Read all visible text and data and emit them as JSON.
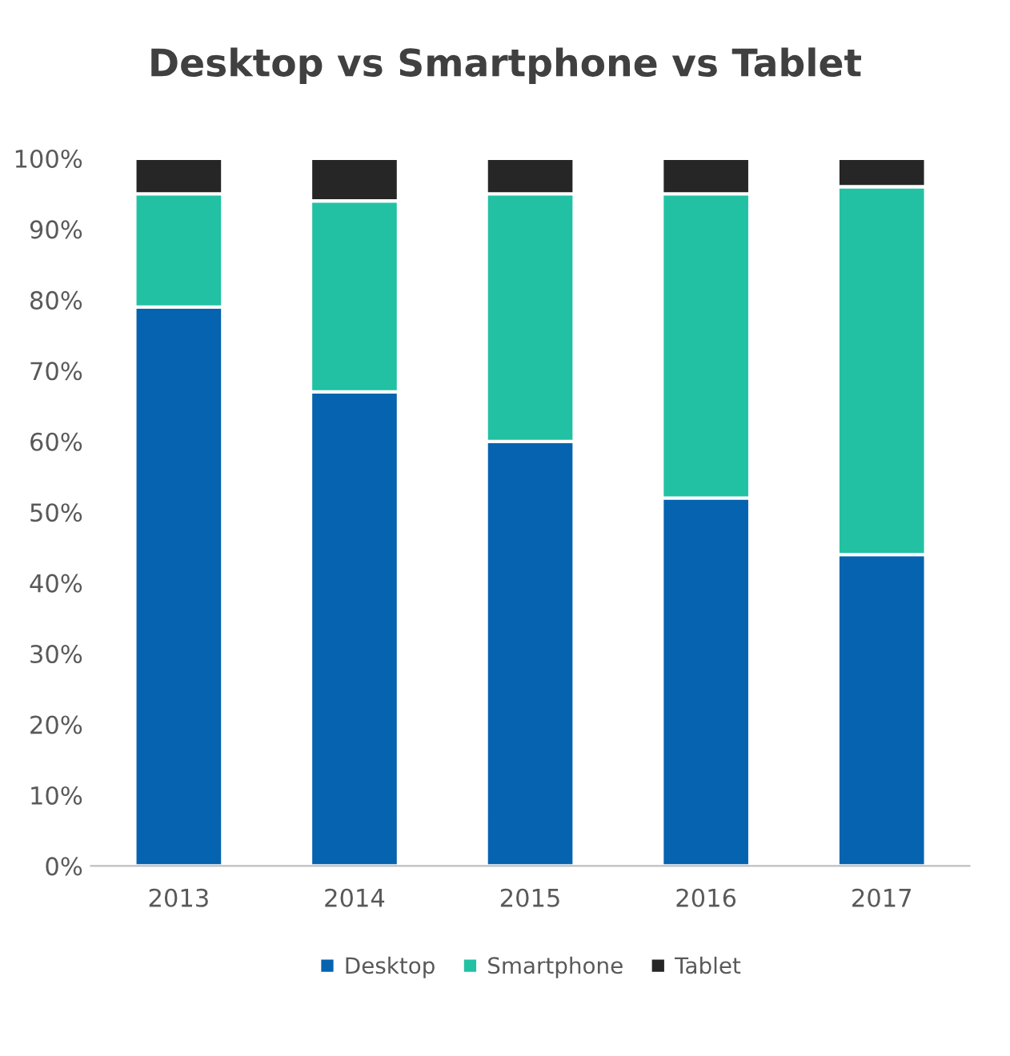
{
  "chart_data": {
    "type": "bar",
    "title": "Desktop vs Smartphone vs Tablet",
    "stacked": true,
    "categories": [
      "2013",
      "2014",
      "2015",
      "2016",
      "2017"
    ],
    "series": [
      {
        "name": "Desktop",
        "color": "#0563b0",
        "values": [
          79,
          67,
          60,
          52,
          44
        ]
      },
      {
        "name": "Smartphone",
        "color": "#22c1a3",
        "values": [
          16,
          27,
          35,
          43,
          52
        ]
      },
      {
        "name": "Tablet",
        "color": "#262626",
        "values": [
          5,
          6,
          5,
          5,
          4
        ]
      }
    ],
    "ylim": [
      0,
      100
    ],
    "yticks": [
      {
        "value": 0,
        "label": "0%"
      },
      {
        "value": 10,
        "label": "10%"
      },
      {
        "value": 20,
        "label": "20%"
      },
      {
        "value": 30,
        "label": "30%"
      },
      {
        "value": 40,
        "label": "40%"
      },
      {
        "value": 50,
        "label": "50%"
      },
      {
        "value": 60,
        "label": "60%"
      },
      {
        "value": 70,
        "label": "70%"
      },
      {
        "value": 80,
        "label": "80%"
      },
      {
        "value": 90,
        "label": "90%"
      },
      {
        "value": 100,
        "label": "100%"
      }
    ],
    "grid": false,
    "legend": "bottom"
  }
}
